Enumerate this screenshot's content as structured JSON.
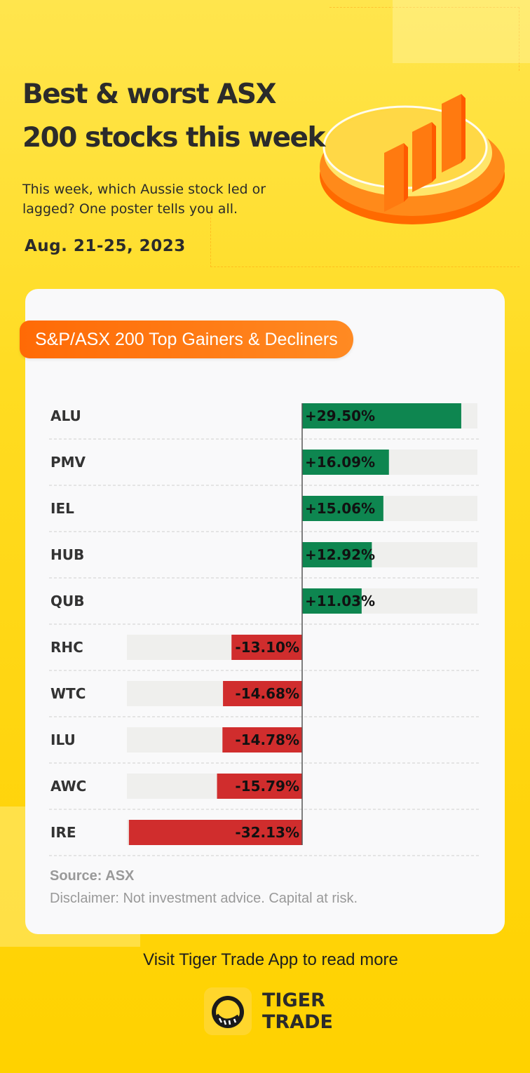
{
  "header": {
    "title": "Best & worst ASX 200 stocks this week",
    "subtitle": "This week, which Aussie stock led or lagged? One poster tells you all.",
    "date": "Aug. 21-25, 2023"
  },
  "card": {
    "badge": "S&P/ASX 200 Top Gainers & Decliners",
    "source": "Source: ASX",
    "disclaimer": "Disclaimer: Not investment advice. Capital at risk."
  },
  "footer": {
    "cta": "Visit Tiger Trade App to read more",
    "brand_line1": "TIGER",
    "brand_line2": "TRADE"
  },
  "colors": {
    "gain": "#0e8650",
    "loss": "#d02d2d",
    "track": "#efefed",
    "accent": "#ff7a12",
    "background": "#ffd800"
  },
  "chart_data": {
    "type": "bar",
    "orientation": "horizontal",
    "title": "S&P/ASX 200 Top Gainers & Decliners",
    "categories": [
      "ALU",
      "PMV",
      "IEL",
      "HUB",
      "QUB",
      "RHC",
      "WTC",
      "ILU",
      "AWC",
      "IRE"
    ],
    "values": [
      29.5,
      16.09,
      15.06,
      12.92,
      11.03,
      -13.1,
      -14.68,
      -14.78,
      -15.79,
      -32.13
    ],
    "labels": [
      "+29.50%",
      "+16.09%",
      "+15.06%",
      "+12.92%",
      "+11.03%",
      "-13.10%",
      "-14.68%",
      "-14.78%",
      "-15.79%",
      "-32.13%"
    ],
    "unit": "%",
    "positive_color": "#0e8650",
    "negative_color": "#d02d2d"
  }
}
